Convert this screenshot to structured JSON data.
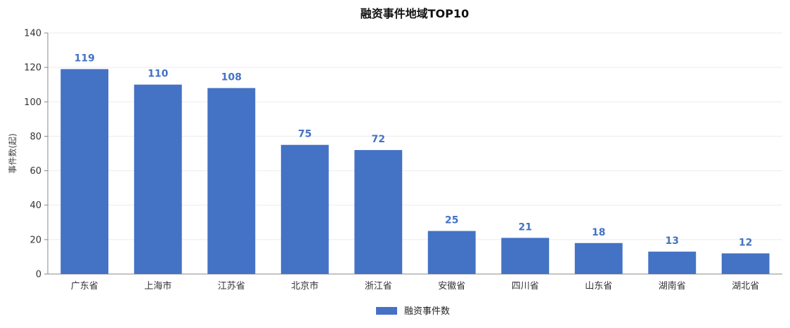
{
  "chart_data": {
    "type": "bar",
    "title": "融资事件地域TOP10",
    "ylabel": "事件数(起)",
    "xlabel": "",
    "categories": [
      "广东省",
      "上海市",
      "江苏省",
      "北京市",
      "浙江省",
      "安徽省",
      "四川省",
      "山东省",
      "湖南省",
      "湖北省"
    ],
    "series": [
      {
        "name": "融资事件数",
        "values": [
          119,
          110,
          108,
          75,
          72,
          25,
          21,
          18,
          13,
          12
        ],
        "color": "#4472c4"
      }
    ],
    "ylim": [
      0,
      140
    ],
    "yticks": [
      "0",
      "20",
      "40",
      "60",
      "80",
      "100",
      "120",
      "140"
    ],
    "grid": true,
    "legend_position": "bottom-center"
  }
}
